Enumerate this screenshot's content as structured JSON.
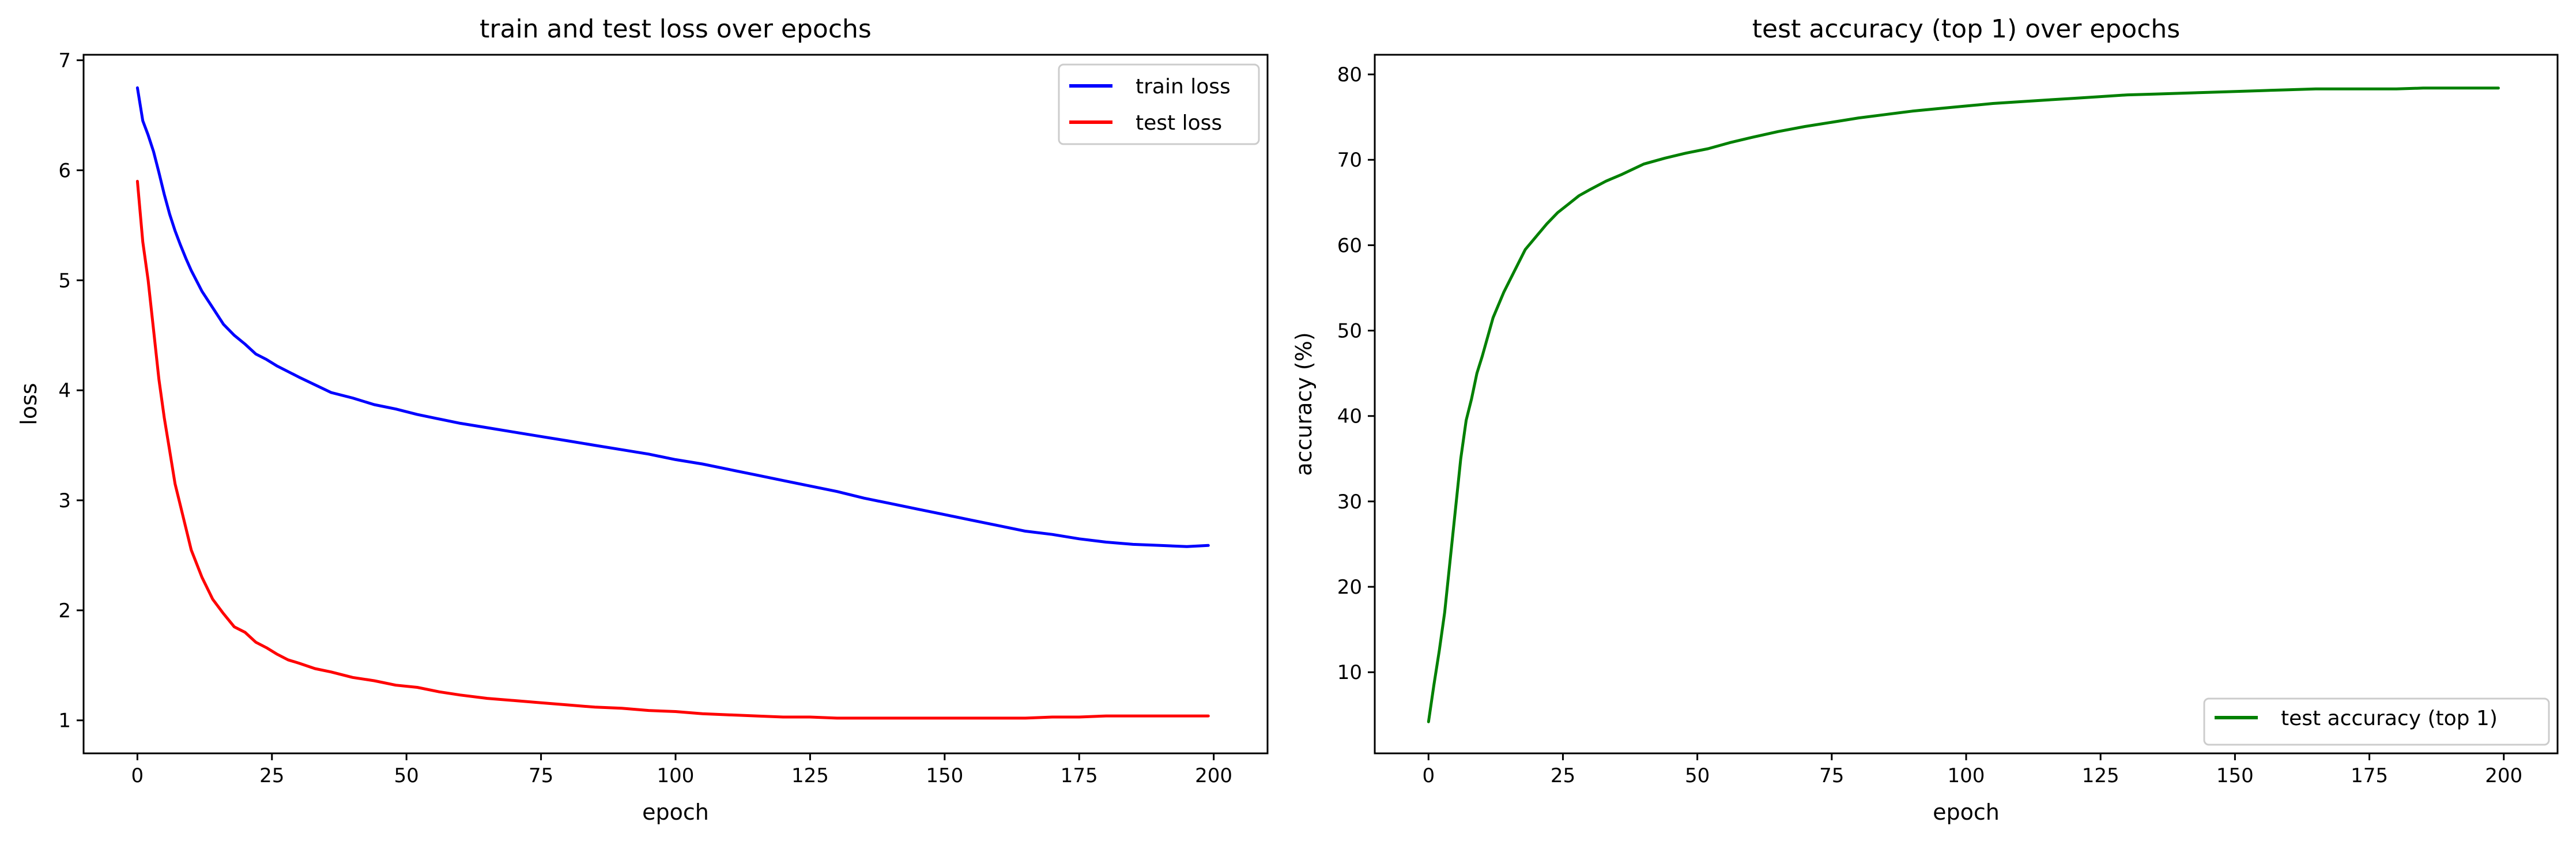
{
  "chart_data": [
    {
      "type": "line",
      "title": "train and test loss over epochs",
      "xlabel": "epoch",
      "ylabel": "loss",
      "xlim": [
        -10,
        210
      ],
      "ylim": [
        0.7,
        7.05
      ],
      "xticks": [
        0,
        25,
        50,
        75,
        100,
        125,
        150,
        175,
        200
      ],
      "yticks": [
        1,
        2,
        3,
        4,
        5,
        6,
        7
      ],
      "grid": false,
      "legend": "top-right",
      "x": [
        0,
        1,
        2,
        3,
        4,
        5,
        6,
        7,
        8,
        9,
        10,
        12,
        14,
        16,
        18,
        20,
        22,
        24,
        26,
        28,
        30,
        33,
        36,
        40,
        44,
        48,
        52,
        56,
        60,
        65,
        70,
        75,
        80,
        85,
        90,
        95,
        100,
        105,
        110,
        115,
        120,
        125,
        130,
        135,
        140,
        145,
        150,
        155,
        160,
        165,
        170,
        175,
        180,
        185,
        190,
        195,
        199
      ],
      "series": [
        {
          "name": "train loss",
          "color": "#0000ff",
          "values": [
            6.75,
            6.45,
            6.32,
            6.17,
            5.98,
            5.78,
            5.6,
            5.45,
            5.32,
            5.2,
            5.09,
            4.9,
            4.75,
            4.6,
            4.5,
            4.42,
            4.33,
            4.28,
            4.22,
            4.17,
            4.12,
            4.05,
            3.98,
            3.93,
            3.87,
            3.83,
            3.78,
            3.74,
            3.7,
            3.66,
            3.62,
            3.58,
            3.54,
            3.5,
            3.46,
            3.42,
            3.37,
            3.33,
            3.28,
            3.23,
            3.18,
            3.13,
            3.08,
            3.02,
            2.97,
            2.92,
            2.87,
            2.82,
            2.77,
            2.72,
            2.69,
            2.65,
            2.62,
            2.6,
            2.59,
            2.58,
            2.59
          ]
        },
        {
          "name": "test loss",
          "color": "#ff0000",
          "values": [
            5.9,
            5.35,
            5.0,
            4.55,
            4.1,
            3.75,
            3.45,
            3.15,
            2.95,
            2.75,
            2.55,
            2.3,
            2.1,
            1.97,
            1.85,
            1.8,
            1.71,
            1.66,
            1.6,
            1.55,
            1.52,
            1.47,
            1.44,
            1.39,
            1.36,
            1.32,
            1.3,
            1.26,
            1.23,
            1.2,
            1.18,
            1.16,
            1.14,
            1.12,
            1.11,
            1.09,
            1.08,
            1.06,
            1.05,
            1.04,
            1.03,
            1.03,
            1.02,
            1.02,
            1.02,
            1.02,
            1.02,
            1.02,
            1.02,
            1.02,
            1.03,
            1.03,
            1.04,
            1.04,
            1.04,
            1.04,
            1.04
          ]
        }
      ]
    },
    {
      "type": "line",
      "title": "test accuracy (top 1) over epochs",
      "xlabel": "epoch",
      "ylabel": "accuracy (%)",
      "xlim": [
        -10,
        210
      ],
      "ylim": [
        0.5,
        82.3
      ],
      "xticks": [
        0,
        25,
        50,
        75,
        100,
        125,
        150,
        175,
        200
      ],
      "yticks": [
        10,
        20,
        30,
        40,
        50,
        60,
        70,
        80
      ],
      "grid": false,
      "legend": "bottom-right",
      "x": [
        0,
        1,
        2,
        3,
        4,
        5,
        6,
        7,
        8,
        9,
        10,
        12,
        14,
        16,
        18,
        20,
        22,
        24,
        26,
        28,
        30,
        33,
        36,
        40,
        44,
        48,
        52,
        56,
        60,
        65,
        70,
        75,
        80,
        85,
        90,
        95,
        100,
        105,
        110,
        115,
        120,
        125,
        130,
        135,
        140,
        145,
        150,
        155,
        160,
        165,
        170,
        175,
        180,
        185,
        190,
        195,
        199
      ],
      "series": [
        {
          "name": "test accuracy (top 1)",
          "color": "#008000",
          "values": [
            4.2,
            8.5,
            12.5,
            17.0,
            23.0,
            29.0,
            35.0,
            39.5,
            42.0,
            45.0,
            47.0,
            51.5,
            54.5,
            57.0,
            59.5,
            61.0,
            62.5,
            63.8,
            64.8,
            65.8,
            66.5,
            67.5,
            68.3,
            69.5,
            70.2,
            70.8,
            71.3,
            72.0,
            72.6,
            73.3,
            73.9,
            74.4,
            74.9,
            75.3,
            75.7,
            76.0,
            76.3,
            76.6,
            76.8,
            77.0,
            77.2,
            77.4,
            77.6,
            77.7,
            77.8,
            77.9,
            78.0,
            78.1,
            78.2,
            78.3,
            78.3,
            78.3,
            78.3,
            78.4,
            78.4,
            78.4,
            78.4
          ]
        }
      ]
    }
  ]
}
